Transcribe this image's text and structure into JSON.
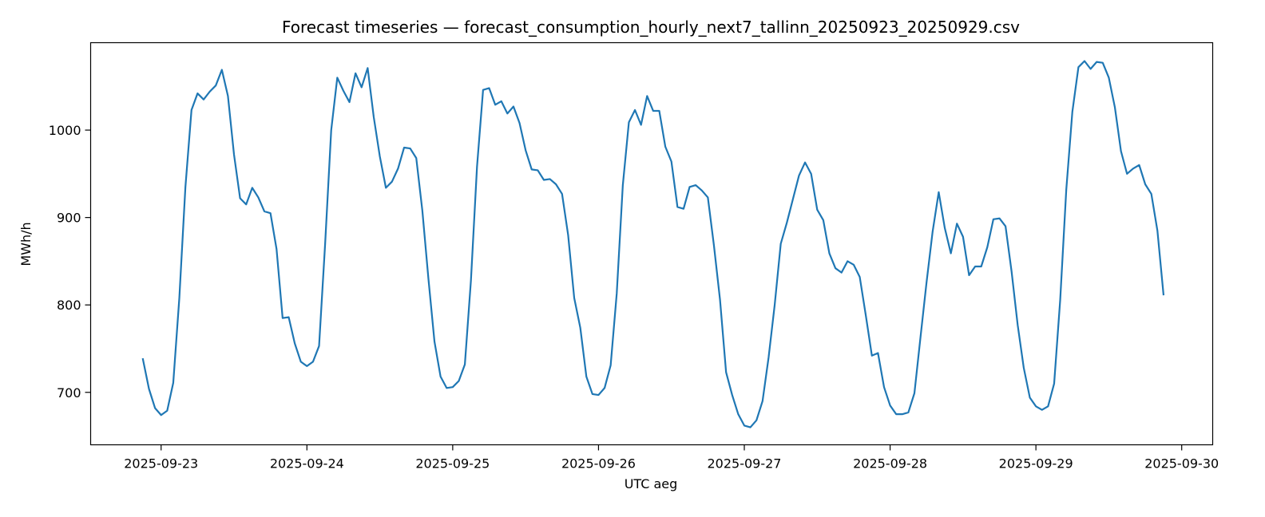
{
  "chart_data": {
    "type": "line",
    "title": "Forecast timeseries — forecast_consumption_hourly_next7_tallinn_20250923_20250929.csv",
    "xlabel": "UTC aeg",
    "ylabel": "MWh/h",
    "x_tick_labels": [
      "2025-09-23",
      "2025-09-24",
      "2025-09-25",
      "2025-09-26",
      "2025-09-27",
      "2025-09-28",
      "2025-09-29",
      "2025-09-30"
    ],
    "y_tick_labels": [
      "700",
      "800",
      "900",
      "1000"
    ],
    "y_ticks": [
      700,
      800,
      900,
      1000
    ],
    "ylim": [
      640,
      1100
    ],
    "xlim": [
      "2025-09-22T12:24",
      "2025-09-30T05:06"
    ],
    "grid": false,
    "color": "#1f77b4",
    "series": [
      {
        "x_start": "2025-09-22T21:00",
        "step_hours": 1,
        "values": [
          738,
          704,
          682,
          674,
          679,
          711,
          808,
          935,
          1023,
          1042,
          1035,
          1044,
          1051,
          1069,
          1039,
          972,
          922,
          915,
          934,
          923,
          907,
          905,
          864,
          785,
          786,
          756,
          735,
          730,
          735,
          753,
          870,
          1000,
          1060,
          1045,
          1032,
          1065,
          1049,
          1071,
          1015,
          970,
          934,
          941,
          956,
          980,
          979,
          968,
          908,
          830,
          758,
          718,
          705,
          706,
          713,
          732,
          828,
          958,
          1046,
          1048,
          1029,
          1033,
          1019,
          1027,
          1008,
          977,
          955,
          954,
          943,
          944,
          938,
          927,
          880,
          808,
          774,
          718,
          698,
          697,
          705,
          731,
          813,
          937,
          1009,
          1023,
          1006,
          1039,
          1022,
          1022,
          981,
          964,
          912,
          910,
          935,
          937,
          931,
          923,
          868,
          806,
          723,
          697,
          675,
          662,
          660,
          668,
          690,
          740,
          800,
          870,
          894,
          921,
          948,
          963,
          950,
          909,
          897,
          859,
          842,
          837,
          850,
          846,
          832,
          788,
          742,
          745,
          706,
          685,
          675,
          675,
          677,
          699,
          763,
          826,
          884,
          929,
          888,
          859,
          893,
          878,
          834,
          844,
          844,
          866,
          898,
          899,
          890,
          838,
          777,
          728,
          694,
          684,
          680,
          684,
          710,
          806,
          932,
          1021,
          1072,
          1079,
          1070,
          1078,
          1077,
          1060,
          1026,
          976,
          950,
          956,
          960,
          938,
          927,
          885,
          812
        ]
      }
    ]
  }
}
